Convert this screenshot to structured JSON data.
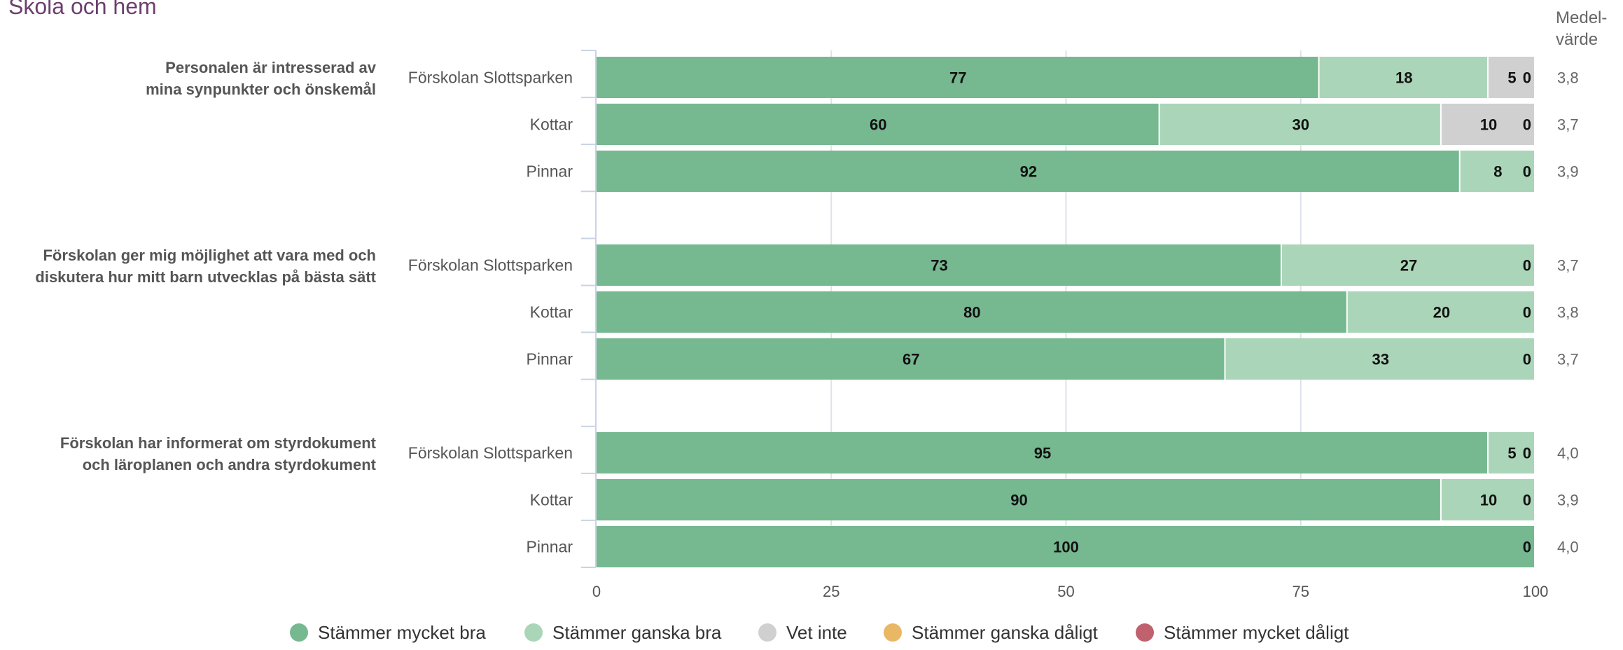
{
  "chart_data": {
    "type": "bar",
    "orientation": "horizontal",
    "stacked": true,
    "title": "Skola och hem",
    "mean_header": [
      "Medel-",
      "värde"
    ],
    "xlim": [
      0,
      100
    ],
    "x_ticks": [
      "0",
      "25",
      "50",
      "75",
      "100"
    ],
    "grid": true,
    "legend_position": "bottom",
    "series": [
      {
        "name": "Stämmer mycket bra",
        "color": "#76b890"
      },
      {
        "name": "Stämmer ganska bra",
        "color": "#abd5b8"
      },
      {
        "name": "Vet inte",
        "color": "#d0d0d0"
      },
      {
        "name": "Stämmer ganska dåligt",
        "color": "#e9b865"
      },
      {
        "name": "Stämmer mycket dåligt",
        "color": "#c0616e"
      }
    ],
    "groups": [
      {
        "question": [
          "Personalen är intresserad av",
          "mina synpunkter och önskemål"
        ],
        "rows": [
          {
            "label": "Förskolan Slottsparken",
            "values": [
              77,
              18,
              5,
              0,
              0
            ],
            "mean": "3,8"
          },
          {
            "label": "Kottar",
            "values": [
              60,
              30,
              10,
              0,
              0
            ],
            "mean": "3,7"
          },
          {
            "label": "Pinnar",
            "values": [
              92,
              8,
              0,
              0,
              0
            ],
            "mean": "3,9"
          }
        ]
      },
      {
        "question": [
          "Förskolan ger mig möjlighet att vara med och",
          "diskutera hur mitt barn utvecklas på bästa sätt"
        ],
        "rows": [
          {
            "label": "Förskolan Slottsparken",
            "values": [
              73,
              27,
              0,
              0,
              0
            ],
            "mean": "3,7"
          },
          {
            "label": "Kottar",
            "values": [
              80,
              20,
              0,
              0,
              0
            ],
            "mean": "3,8"
          },
          {
            "label": "Pinnar",
            "values": [
              67,
              33,
              0,
              0,
              0
            ],
            "mean": "3,7"
          }
        ]
      },
      {
        "question": [
          "Förskolan har informerat om styrdokument",
          "och läroplanen och andra styrdokument"
        ],
        "rows": [
          {
            "label": "Förskolan Slottsparken",
            "values": [
              95,
              5,
              0,
              0,
              0
            ],
            "mean": "4,0"
          },
          {
            "label": "Kottar",
            "values": [
              90,
              10,
              0,
              0,
              0
            ],
            "mean": "3,9"
          },
          {
            "label": "Pinnar",
            "values": [
              100,
              0,
              0,
              0,
              0
            ],
            "mean": "4,0"
          }
        ]
      }
    ]
  }
}
